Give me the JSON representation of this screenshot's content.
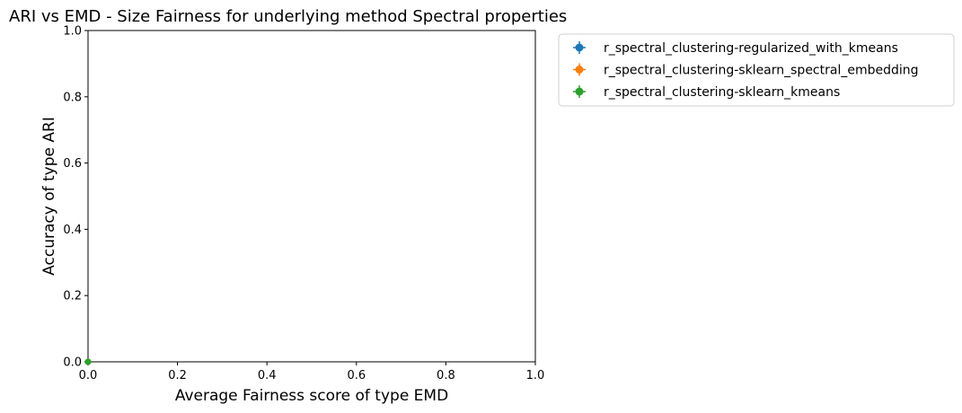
{
  "chart_data": {
    "type": "scatter",
    "title": "ARI vs EMD - Size Fairness for underlying method Spectral properties",
    "xlabel": "Average Fairness score of type EMD",
    "ylabel": "Accuracy of type ARI",
    "xlim": [
      0,
      1
    ],
    "ylim": [
      0,
      1
    ],
    "xticks": [
      "0.0",
      "0.2",
      "0.4",
      "0.6",
      "0.8",
      "1.0"
    ],
    "yticks": [
      "0.0",
      "0.2",
      "0.4",
      "0.6",
      "0.8",
      "1.0"
    ],
    "grid": false,
    "legend_position": "outside-right",
    "series": [
      {
        "name": "r_spectral_clustering-regularized_with_kmeans",
        "color": "#1f77b4",
        "marker": "circle-with-errorbars",
        "x": [
          0.0
        ],
        "y": [
          0.0
        ]
      },
      {
        "name": "r_spectral_clustering-sklearn_spectral_embedding",
        "color": "#ff7f0e",
        "marker": "circle-with-errorbars",
        "x": [
          0.0
        ],
        "y": [
          0.0
        ]
      },
      {
        "name": "r_spectral_clustering-sklearn_kmeans",
        "color": "#2ca02c",
        "marker": "circle-with-errorbars",
        "x": [
          0.0
        ],
        "y": [
          0.0
        ]
      }
    ]
  }
}
